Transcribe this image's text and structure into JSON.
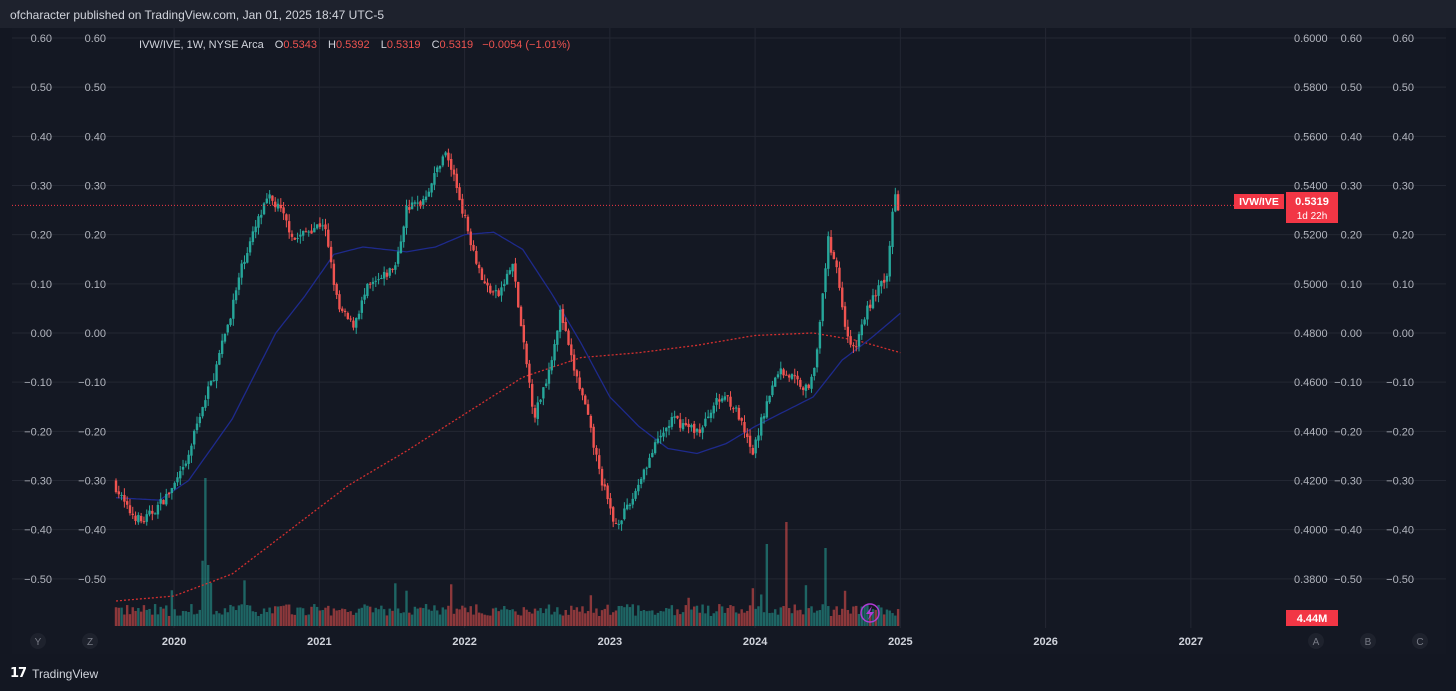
{
  "header": {
    "publish_text": "ofcharacter published on TradingView.com, Jan 01, 2025 18:47 UTC-5"
  },
  "footer": {
    "logo_glyph": "17",
    "brand": "TradingView"
  },
  "legend": {
    "symbol": "IVW/IVE, 1W, NYSE Arca",
    "o_label": "O",
    "o_value": "0.5343",
    "h_label": "H",
    "h_value": "0.5392",
    "l_label": "L",
    "l_value": "0.5319",
    "c_label": "C",
    "c_value": "0.5319",
    "change": "−0.0054 (−1.01%)"
  },
  "price_tag": {
    "label": "IVW/IVE",
    "value": "0.5319",
    "countdown": "1d 22h"
  },
  "volume_tag": "4.44M",
  "corner_buttons_left": [
    "Y",
    "Z"
  ],
  "corner_buttons_right": [
    "A",
    "B",
    "C"
  ],
  "colors": {
    "up": "#26a69a",
    "down": "#ef5350",
    "sma_fast": "#1e2a8c",
    "sma_slow": "#d32f2f",
    "background": "#131722",
    "grid": "#232733",
    "tag": "#f23645"
  },
  "chart_data": {
    "type": "candlestick",
    "price_axis": {
      "min": 0.36,
      "max": 0.6,
      "ticks": [
        "0.6000",
        "0.5800",
        "0.5600",
        "0.5400",
        "0.5200",
        "0.5000",
        "0.4800",
        "0.4600",
        "0.4400",
        "0.4200",
        "0.4000",
        "0.3800"
      ]
    },
    "percent_axis": {
      "ticks": [
        "0.60",
        "0.50",
        "0.40",
        "0.30",
        "0.20",
        "0.10",
        "0.00",
        "−0.10",
        "−0.20",
        "−0.30",
        "−0.40",
        "−0.50"
      ]
    },
    "x_labels": [
      "2020",
      "2021",
      "2022",
      "2023",
      "2024",
      "2025",
      "2026",
      "2027"
    ],
    "x_range": [
      2019.6,
      2027.6
    ],
    "price_keypoints": [
      [
        2019.6,
        0.4195
      ],
      [
        2019.7,
        0.408
      ],
      [
        2019.8,
        0.403
      ],
      [
        2019.9,
        0.409
      ],
      [
        2020.0,
        0.416
      ],
      [
        2020.1,
        0.426
      ],
      [
        2020.2,
        0.448
      ],
      [
        2020.3,
        0.464
      ],
      [
        2020.4,
        0.486
      ],
      [
        2020.5,
        0.51
      ],
      [
        2020.6,
        0.526
      ],
      [
        2020.67,
        0.535
      ],
      [
        2020.75,
        0.53
      ],
      [
        2020.85,
        0.518
      ],
      [
        2020.95,
        0.522
      ],
      [
        2021.05,
        0.525
      ],
      [
        2021.15,
        0.49
      ],
      [
        2021.25,
        0.483
      ],
      [
        2021.35,
        0.498
      ],
      [
        2021.45,
        0.502
      ],
      [
        2021.55,
        0.508
      ],
      [
        2021.62,
        0.531
      ],
      [
        2021.72,
        0.533
      ],
      [
        2021.8,
        0.542
      ],
      [
        2021.88,
        0.554
      ],
      [
        2021.94,
        0.545
      ],
      [
        2022.05,
        0.52
      ],
      [
        2022.15,
        0.5
      ],
      [
        2022.25,
        0.495
      ],
      [
        2022.35,
        0.508
      ],
      [
        2022.42,
        0.477
      ],
      [
        2022.5,
        0.446
      ],
      [
        2022.6,
        0.465
      ],
      [
        2022.68,
        0.489
      ],
      [
        2022.75,
        0.47
      ],
      [
        2022.85,
        0.45
      ],
      [
        2022.95,
        0.423
      ],
      [
        2023.05,
        0.402
      ],
      [
        2023.15,
        0.409
      ],
      [
        2023.25,
        0.424
      ],
      [
        2023.35,
        0.436
      ],
      [
        2023.45,
        0.445
      ],
      [
        2023.55,
        0.442
      ],
      [
        2023.65,
        0.44
      ],
      [
        2023.72,
        0.45
      ],
      [
        2023.82,
        0.455
      ],
      [
        2023.9,
        0.447
      ],
      [
        2024.0,
        0.43
      ],
      [
        2024.08,
        0.448
      ],
      [
        2024.18,
        0.465
      ],
      [
        2024.28,
        0.462
      ],
      [
        2024.38,
        0.457
      ],
      [
        2024.45,
        0.473
      ],
      [
        2024.52,
        0.518
      ],
      [
        2024.58,
        0.508
      ],
      [
        2024.63,
        0.485
      ],
      [
        2024.7,
        0.472
      ],
      [
        2024.78,
        0.488
      ],
      [
        2024.88,
        0.5
      ],
      [
        2024.92,
        0.498
      ],
      [
        2024.95,
        0.518
      ],
      [
        2024.98,
        0.54
      ],
      [
        2025.0,
        0.5319
      ]
    ],
    "sma_fast_keypoints": [
      [
        2019.6,
        0.413
      ],
      [
        2019.9,
        0.412
      ],
      [
        2020.1,
        0.42
      ],
      [
        2020.4,
        0.445
      ],
      [
        2020.7,
        0.48
      ],
      [
        2020.9,
        0.495
      ],
      [
        2021.1,
        0.512
      ],
      [
        2021.3,
        0.515
      ],
      [
        2021.6,
        0.513
      ],
      [
        2021.8,
        0.515
      ],
      [
        2022.0,
        0.52
      ],
      [
        2022.2,
        0.521
      ],
      [
        2022.4,
        0.514
      ],
      [
        2022.6,
        0.496
      ],
      [
        2022.8,
        0.476
      ],
      [
        2023.0,
        0.454
      ],
      [
        2023.2,
        0.442
      ],
      [
        2023.4,
        0.433
      ],
      [
        2023.6,
        0.431
      ],
      [
        2023.8,
        0.435
      ],
      [
        2024.0,
        0.442
      ],
      [
        2024.2,
        0.448
      ],
      [
        2024.4,
        0.454
      ],
      [
        2024.6,
        0.469
      ],
      [
        2024.8,
        0.478
      ],
      [
        2025.0,
        0.488
      ]
    ],
    "sma_slow_keypoints": [
      [
        2019.6,
        0.371
      ],
      [
        2020.0,
        0.373
      ],
      [
        2020.4,
        0.382
      ],
      [
        2020.8,
        0.4
      ],
      [
        2021.2,
        0.418
      ],
      [
        2021.6,
        0.432
      ],
      [
        2022.0,
        0.447
      ],
      [
        2022.4,
        0.462
      ],
      [
        2022.8,
        0.47
      ],
      [
        2023.2,
        0.472
      ],
      [
        2023.6,
        0.475
      ],
      [
        2024.0,
        0.479
      ],
      [
        2024.4,
        0.48
      ],
      [
        2024.7,
        0.477
      ],
      [
        2025.0,
        0.472
      ]
    ]
  }
}
